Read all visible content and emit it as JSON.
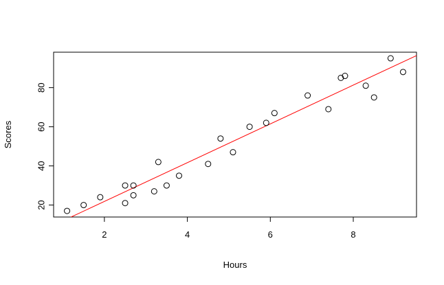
{
  "chart_data": {
    "type": "scatter",
    "x_label": "Hours",
    "y_label": "Scores",
    "x": [
      2.5,
      5.1,
      3.2,
      8.5,
      3.5,
      1.5,
      9.2,
      5.5,
      8.3,
      2.7,
      7.7,
      5.9,
      4.5,
      3.3,
      1.1,
      8.9,
      2.5,
      1.9,
      6.1,
      7.4,
      2.7,
      4.8,
      3.8,
      6.9,
      7.8
    ],
    "values": [
      21,
      47,
      27,
      75,
      30,
      20,
      88,
      60,
      81,
      25,
      85,
      62,
      41,
      42,
      17,
      95,
      30,
      24,
      67,
      69,
      30,
      54,
      35,
      76,
      86
    ],
    "color": "#000000",
    "fit": {
      "intercept": 2.02,
      "slope": 9.91,
      "color": "#ff0000"
    },
    "xlim": [
      0.776,
      9.524
    ],
    "xticks": [
      2,
      4,
      6,
      8
    ],
    "ylim": [
      13.88,
      98.12
    ],
    "yticks": [
      20,
      40,
      60,
      80
    ]
  }
}
